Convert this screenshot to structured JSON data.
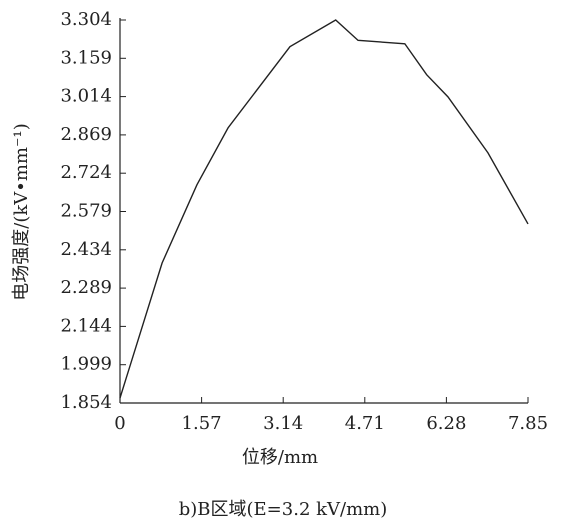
{
  "chart_data": {
    "type": "line",
    "caption": "b)B区域(E=3.2 kV/mm)",
    "x_label": "位移/mm",
    "y_label": "电场强度/(kV•mm⁻¹)",
    "x": [
      0,
      0.81,
      1.48,
      2.08,
      3.27,
      4.15,
      4.58,
      5.48,
      5.9,
      6.31,
      7.08,
      7.85
    ],
    "series": [
      {
        "color": "#222222",
        "values": [
          1.873,
          2.384,
          2.68,
          2.896,
          3.203,
          3.304,
          3.227,
          3.214,
          3.097,
          3.013,
          2.801,
          2.532
        ]
      }
    ],
    "xlim": [
      0,
      7.85
    ],
    "xticks": [
      0,
      1.57,
      3.14,
      4.71,
      6.28,
      7.85
    ],
    "ylim": [
      1.854,
      3.304
    ],
    "yticks": [
      1.854,
      1.999,
      2.144,
      2.289,
      2.434,
      2.579,
      2.724,
      2.869,
      3.014,
      3.159,
      3.304
    ],
    "grid": false
  }
}
